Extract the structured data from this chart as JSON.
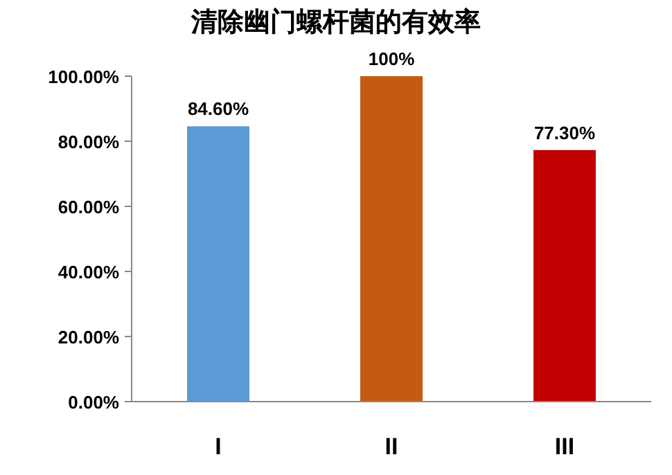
{
  "chart_data": {
    "type": "bar",
    "title": "清除幽门螺杆菌的有效率",
    "categories": [
      "I",
      "II",
      "III"
    ],
    "values": [
      84.6,
      100,
      77.3
    ],
    "colors": [
      "#5b9bd5",
      "#c55a11",
      "#c00000"
    ],
    "value_labels": [
      "84.60%",
      "100%",
      "77.30%"
    ],
    "ylim": [
      0,
      100
    ],
    "yticks": [
      {
        "value": 0,
        "label": "0.00%"
      },
      {
        "value": 20,
        "label": "20.00%"
      },
      {
        "value": 40,
        "label": "40.00%"
      },
      {
        "value": 60,
        "label": "60.00%"
      },
      {
        "value": 80,
        "label": "80.00%"
      },
      {
        "value": 100,
        "label": "100.00%"
      }
    ],
    "grid": false
  }
}
